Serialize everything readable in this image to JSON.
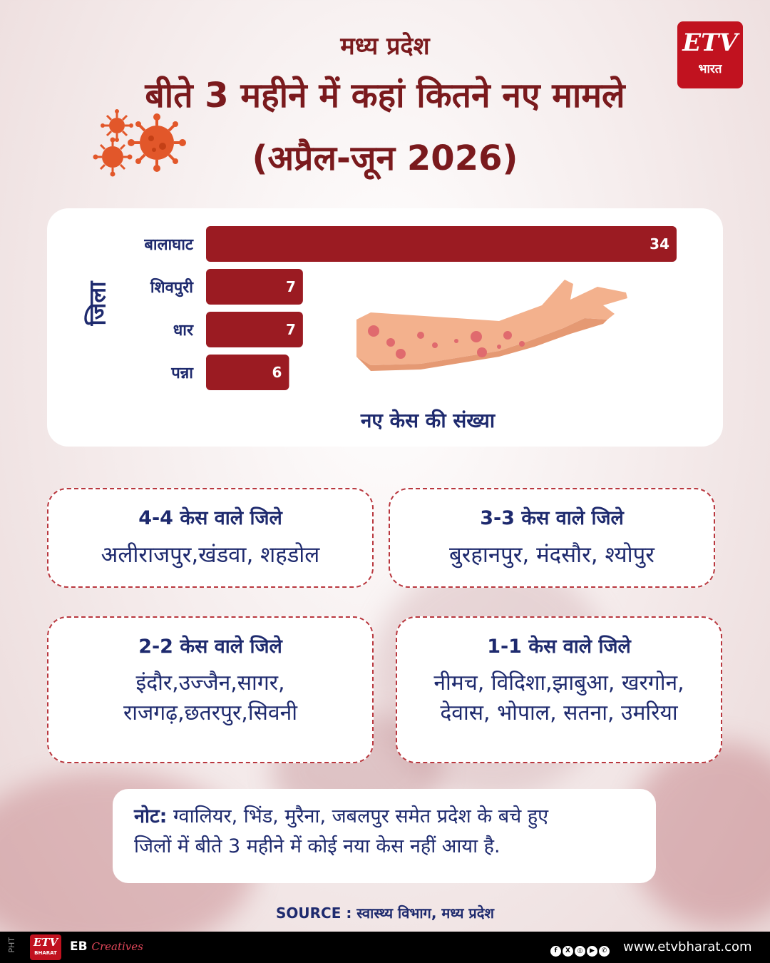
{
  "header": {
    "subtitle": "मध्य प्रदेश",
    "title": "बीते 3 महीने में कहां कितने नए मामले",
    "period": "(अप्रैल-जून 2026)"
  },
  "logo": {
    "brand": "ETV",
    "script": "भारत"
  },
  "chart_data": {
    "type": "bar",
    "orientation": "horizontal",
    "categories": [
      "बालाघाट",
      "शिवपुरी",
      "धार",
      "पन्ना"
    ],
    "values": [
      34,
      7,
      7,
      6
    ],
    "ylabel": "जिला",
    "xlabel": "नए केस की संख्या",
    "bar_color": "#9b1b22",
    "xlim": [
      0,
      34
    ]
  },
  "groups": [
    {
      "heading": "4-4 केस वाले जिले",
      "lines": [
        "अलीराजपुर,खंडवा, शहडोल"
      ]
    },
    {
      "heading": "3-3 केस वाले जिले",
      "lines": [
        "बुरहानपुर, मंदसौर,  श्योपुर"
      ]
    },
    {
      "heading": "2-2 केस वाले जिले",
      "lines": [
        "इंदौर,उज्जैन,सागर,",
        "राजगढ़,छतरपुर,सिवनी"
      ]
    },
    {
      "heading": "1-1 केस वाले जिले",
      "lines": [
        "नीमच, विदिशा,झाबुआ, खरगोन,",
        "देवास, भोपाल, सतना, उमरिया"
      ]
    }
  ],
  "note": {
    "label": "नोट:",
    "line1": " ग्वालियर, भिंड, मुरैना, जबलपुर समेत प्रदेश के बचे हुए",
    "line2": "जिलों में बीते 3 महीने में कोई नया केस नहीं आया है."
  },
  "source": "SOURCE : स्वास्थ्य विभाग, मध्य प्रदेश",
  "footer": {
    "pht": "PHT",
    "logo_brand": "ETV",
    "logo_script": "BHARAT",
    "eb": "EB",
    "creatives": "Creatives",
    "url": "www.etvbharat.com",
    "social_icons": [
      "facebook-icon",
      "x-icon",
      "instagram-icon",
      "youtube-icon",
      "whatsapp-icon"
    ]
  },
  "colors": {
    "maroon": "#7a1a1d",
    "navy": "#1e2a6e",
    "brand_red": "#c1121f"
  }
}
